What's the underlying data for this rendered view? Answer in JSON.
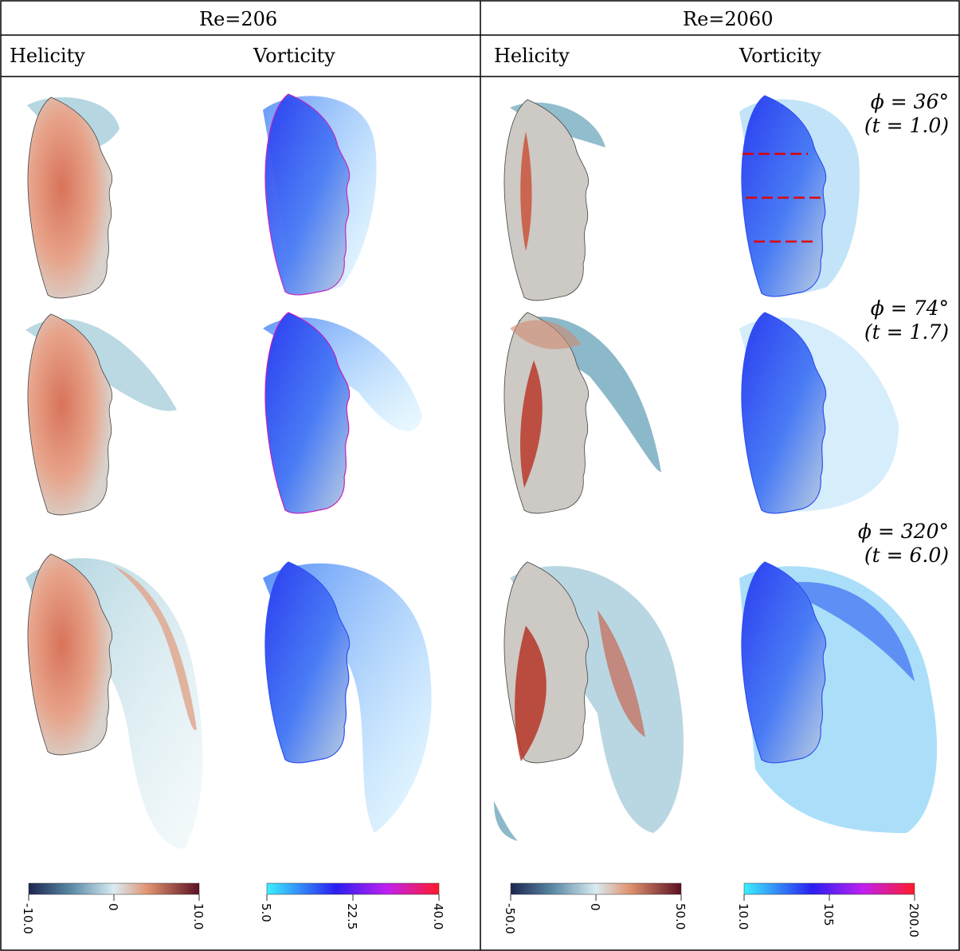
{
  "header": {
    "left_group": "Re=206",
    "right_group": "Re=2060",
    "columns": [
      "Helicity",
      "Vorticity",
      "Helicity",
      "Vorticity"
    ]
  },
  "rows": [
    {
      "phi": "ϕ = 36°",
      "time": "(t = 1.0)"
    },
    {
      "phi": "ϕ = 74°",
      "time": "(t = 1.7)"
    },
    {
      "phi": "ϕ = 320°",
      "time": "(t = 6.0)"
    }
  ],
  "colorbars": [
    {
      "name": "helicity-re206",
      "min": "-10.0",
      "mid": "0",
      "max": "10.0"
    },
    {
      "name": "vorticity-re206",
      "min": "5.0",
      "mid": "22.5",
      "max": "40.0"
    },
    {
      "name": "helicity-re2060",
      "min": "-50.0",
      "mid": "0",
      "max": "50.0"
    },
    {
      "name": "vorticity-re2060",
      "min": "10.0",
      "mid": "105",
      "max": "200.0"
    }
  ],
  "colors": {
    "helicity_neg": "#1c2550",
    "helicity_mid": "#d9ecf2",
    "helicity_pos": "#5b1022",
    "vorticity_low": "#3cf0ff",
    "vorticity_mid": "#2a1ff0",
    "vorticity_high": "#ff1a2a",
    "leaflet": "#cdc9c4",
    "cut_lines": "#e00000"
  }
}
